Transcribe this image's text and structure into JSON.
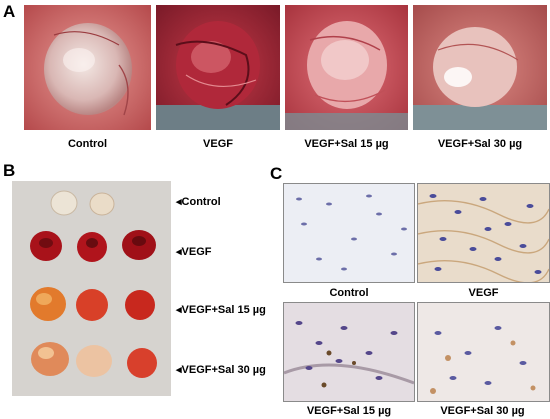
{
  "figure": {
    "panel_a": {
      "letter": "A",
      "captions": [
        "Control",
        "VEGF",
        "VEGF+Sal 15 µg",
        "VEGF+Sal 30 µg"
      ]
    },
    "panel_b": {
      "letter": "B",
      "row_labels": [
        "Control",
        "VEGF",
        "VEGF+Sal 15 µg",
        "VEGF+Sal 30 µg"
      ]
    },
    "panel_c": {
      "letter": "C",
      "captions": [
        "Control",
        "VEGF",
        "VEGF+Sal 15 µg",
        "VEGF+Sal 30 µg"
      ]
    }
  }
}
